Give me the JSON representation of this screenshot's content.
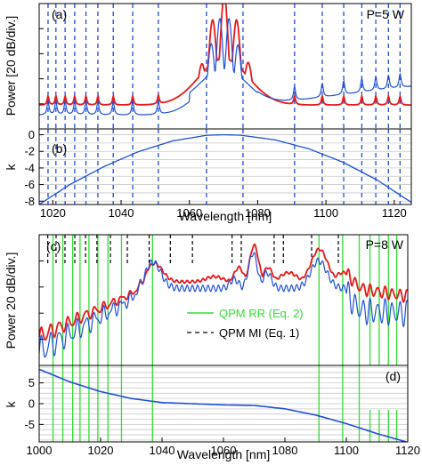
{
  "chart_data": [
    {
      "panel": "a",
      "type": "line",
      "label": "(a)",
      "annotation": "P=5 W",
      "ylabel": "Power [20 dB/div.]",
      "xlabel": "",
      "xlim": [
        1016,
        1125
      ],
      "y_divisions": 5,
      "grid": "dashed vertical lines",
      "dashed_lines_x": [
        1018.6,
        1020.9,
        1023.6,
        1026.4,
        1029.7,
        1033.2,
        1037.7,
        1043.4,
        1050.9,
        1065,
        1075.7,
        1090.8,
        1098.9,
        1105.2,
        1110.5,
        1114.6,
        1118.3,
        1121.7
      ],
      "series": [
        {
          "name": "",
          "color": "#e8191a",
          "peaks": [
            [
              1070.2,
              5.35
            ],
            [
              1066.8,
              4.35
            ],
            [
              1073.8,
              4.35
            ],
            [
              1063.7,
              2.6
            ],
            [
              1077.2,
              2.65
            ]
          ],
          "peak_base": 0.95,
          "comb_peaks": [
            1018.6,
            1020.9,
            1023.6,
            1026.4,
            1029.7,
            1033.2,
            1037.7,
            1043.4,
            1050.9,
            1090.8,
            1098.9,
            1105.2,
            1110.5,
            1114.6,
            1118.3,
            1121.7
          ]
        },
        {
          "name": "",
          "color": "#1f4fd8",
          "peaks": [
            [
              1068.9,
              4.4
            ],
            [
              1071.6,
              4.4
            ],
            [
              1066.4,
              3.4
            ],
            [
              1074.2,
              3.35
            ],
            [
              1062.8,
              1.55
            ],
            [
              1077.5,
              1.55
            ]
          ],
          "low": [
            0.55,
            0.2,
            1.5
          ],
          "comb_peaks": [
            1018.6,
            1020.9,
            1023.6,
            1026.4,
            1029.7,
            1033.2,
            1037.7,
            1043.4,
            1050.9,
            1090.8,
            1098.9,
            1105.2,
            1110.5,
            1114.6,
            1118.3,
            1121.7
          ]
        }
      ]
    },
    {
      "panel": "b",
      "type": "line",
      "label": "(b)",
      "ylabel": "k",
      "xlabel": "Wavelength [nm]",
      "xlim": [
        1016,
        1125
      ],
      "ylim": [
        -8.4,
        0.7
      ],
      "xticks": [
        1020,
        1040,
        1060,
        1080,
        1100,
        1120
      ],
      "yticks": [
        0,
        -2,
        -4,
        -6,
        -8
      ],
      "grid": "horizontal gridlines every 1",
      "dashed_lines_x": [
        1018.6,
        1020.9,
        1023.6,
        1026.4,
        1029.7,
        1033.2,
        1037.7,
        1043.4,
        1050.9,
        1065,
        1075.7,
        1090.8,
        1098.9,
        1105.2,
        1110.5,
        1114.6,
        1118.3,
        1121.7
      ],
      "series": [
        {
          "name": "",
          "color": "#1f4fd8",
          "x": [
            1016,
            1025,
            1035,
            1045,
            1055,
            1065,
            1070,
            1075,
            1085,
            1095,
            1105,
            1115,
            1125
          ],
          "y": [
            -8.4,
            -6.0,
            -3.83,
            -2.05,
            -0.75,
            -0.07,
            0.0,
            -0.06,
            -0.61,
            -1.7,
            -3.31,
            -5.46,
            -8.14
          ]
        }
      ]
    },
    {
      "panel": "c",
      "type": "line",
      "label": "(c)",
      "annotation": "P=8 W",
      "ylabel": "Power 20 dB/div.]",
      "xlabel": "",
      "xlim": [
        1000,
        1120
      ],
      "y_divisions": 5,
      "legend": {
        "placement": "bottom-center",
        "entries": [
          {
            "label": "QPM RR (Eq. 2)",
            "style": "green solid",
            "color": "#33dd33"
          },
          {
            "label": "QPM MI (Eq. 1)",
            "style": "black dashed",
            "color": "#000000"
          }
        ]
      },
      "green_lines_x": [
        1004.5,
        1007.7,
        1010.9,
        1013.3,
        1016.2,
        1019.1,
        1022.4,
        1026.8,
        1036.9,
        1091.1,
        1098.8,
        1104.2,
        1107.7,
        1110.7,
        1113.7,
        1116.4
      ],
      "black_dashed_x": [
        1002.8,
        1005.5,
        1008.4,
        1011.6,
        1015.1,
        1018.8,
        1023.2,
        1028.7,
        1035.8,
        1042.7,
        1049.9,
        1062.8,
        1065.8,
        1076.5,
        1079.5,
        1088.7,
        1097.4
      ],
      "series": [
        {
          "name": "",
          "color": "#e8191a",
          "bumps": [
            [
              1037.6,
              3.9
            ],
            [
              1057,
              3.4
            ],
            [
              1065,
              3.75
            ],
            [
              1070,
              4.6
            ],
            [
              1074.5,
              3.75
            ],
            [
              1081.2,
              3.55
            ],
            [
              1091.2,
              4.45
            ],
            [
              1099,
              3.55
            ],
            [
              1105,
              2.8
            ]
          ]
        },
        {
          "name": "",
          "color": "#1f4fd8",
          "bumps": [
            [
              1037,
              3.95
            ],
            [
              1057,
              2.85
            ],
            [
              1063.5,
              3.3
            ],
            [
              1069.6,
              4.3
            ],
            [
              1074.2,
              3.55
            ],
            [
              1079.5,
              2.6
            ],
            [
              1091,
              4.0
            ],
            [
              1098.5,
              2.95
            ],
            [
              1104.5,
              1.9
            ]
          ]
        }
      ]
    },
    {
      "panel": "d",
      "type": "line",
      "label": "(d)",
      "ylabel": "k",
      "xlabel": "Wavelength [nm]",
      "xlim": [
        1000,
        1120
      ],
      "ylim": [
        -9.2,
        9.2
      ],
      "xticks": [
        1000,
        1020,
        1040,
        1060,
        1080,
        1100,
        1120
      ],
      "yticks": [
        5,
        0,
        -5
      ],
      "grid": "horizontal gridlines every 1.25",
      "green_lines_x": [
        1004.5,
        1007.7,
        1010.9,
        1013.3,
        1016.2,
        1019.1,
        1022.4,
        1026.8,
        1036.9,
        1091.1,
        1098.8,
        1104.2,
        1107.7,
        1110.7,
        1113.7,
        1116.4
      ],
      "series": [
        {
          "name": "",
          "color": "#1f4fd8",
          "x": [
            1000,
            1010,
            1020,
            1030,
            1040,
            1050,
            1060,
            1070,
            1080,
            1090,
            1100,
            1110,
            1120
          ],
          "y": [
            8.27,
            5.24,
            2.9,
            1.24,
            0.26,
            -0.02,
            -0.3,
            -0.43,
            -1.24,
            -2.75,
            -4.8,
            -7.2,
            -9.3
          ]
        }
      ]
    }
  ]
}
